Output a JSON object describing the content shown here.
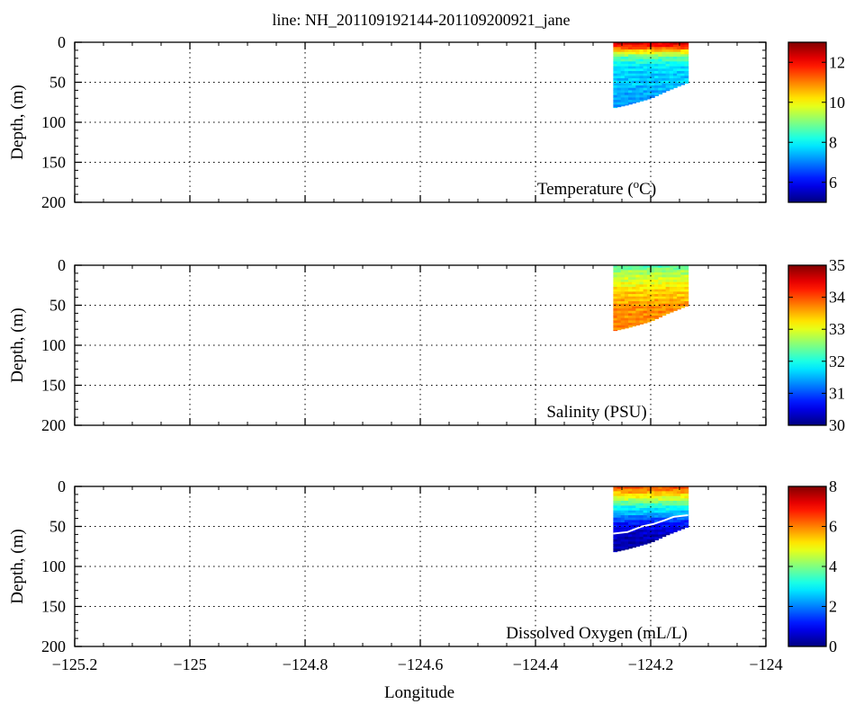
{
  "figure": {
    "title": "line: NH_201109192144-201109200921_jane",
    "xlabel": "Longitude"
  },
  "chart_data": [
    {
      "type": "heatmap",
      "id": "temperature",
      "label": "Temperature (",
      "label_sup": "o",
      "label_tail": "C)",
      "ylabel": "Depth, (m)",
      "xlim": [
        -125.2,
        -124.0
      ],
      "ylim": [
        200,
        0
      ],
      "y_inverted": true,
      "grid": true,
      "colorbar": {
        "min": 5,
        "max": 13,
        "ticks": [
          6,
          8,
          10,
          12
        ],
        "colormap": "jet"
      },
      "data_extent": {
        "lon_start": -124.265,
        "lon_end": -124.135,
        "top_depth": 0,
        "bottom_profile": [
          {
            "lon": -124.265,
            "depth": 82
          },
          {
            "lon": -124.24,
            "depth": 78
          },
          {
            "lon": -124.2,
            "depth": 70
          },
          {
            "lon": -124.17,
            "depth": 60
          },
          {
            "lon": -124.135,
            "depth": 50
          }
        ]
      },
      "vertical_profile": [
        {
          "depth": 0,
          "value": 12.5
        },
        {
          "depth": 5,
          "value": 12.0
        },
        {
          "depth": 10,
          "value": 10.8
        },
        {
          "depth": 18,
          "value": 9.0
        },
        {
          "depth": 30,
          "value": 8.0
        },
        {
          "depth": 60,
          "value": 7.6
        },
        {
          "depth": 85,
          "value": 7.4
        }
      ]
    },
    {
      "type": "heatmap",
      "id": "salinity",
      "label": "Salinity (PSU)",
      "ylabel": "Depth, (m)",
      "xlim": [
        -125.2,
        -124.0
      ],
      "ylim": [
        200,
        0
      ],
      "y_inverted": true,
      "grid": true,
      "colorbar": {
        "min": 30,
        "max": 35,
        "ticks": [
          30,
          31,
          32,
          33,
          34,
          35
        ],
        "colormap": "jet"
      },
      "data_extent": {
        "lon_start": -124.265,
        "lon_end": -124.135,
        "top_depth": 0,
        "bottom_profile": [
          {
            "lon": -124.265,
            "depth": 82
          },
          {
            "lon": -124.24,
            "depth": 78
          },
          {
            "lon": -124.2,
            "depth": 70
          },
          {
            "lon": -124.17,
            "depth": 60
          },
          {
            "lon": -124.135,
            "depth": 50
          }
        ]
      },
      "vertical_profile": [
        {
          "depth": 0,
          "value": 32.3
        },
        {
          "depth": 8,
          "value": 32.8
        },
        {
          "depth": 20,
          "value": 33.1
        },
        {
          "depth": 35,
          "value": 33.5
        },
        {
          "depth": 55,
          "value": 33.8
        },
        {
          "depth": 85,
          "value": 33.9
        }
      ]
    },
    {
      "type": "heatmap",
      "id": "oxygen",
      "label": "Dissolved Oxygen (mL/L)",
      "ylabel": "Depth, (m)",
      "xlim": [
        -125.2,
        -124.0
      ],
      "ylim": [
        200,
        0
      ],
      "y_inverted": true,
      "grid": true,
      "colorbar": {
        "min": 0,
        "max": 8,
        "ticks": [
          0,
          2,
          4,
          6,
          8
        ],
        "colormap": "jet"
      },
      "data_extent": {
        "lon_start": -124.265,
        "lon_end": -124.135,
        "top_depth": 0,
        "bottom_profile": [
          {
            "lon": -124.265,
            "depth": 82
          },
          {
            "lon": -124.24,
            "depth": 78
          },
          {
            "lon": -124.2,
            "depth": 70
          },
          {
            "lon": -124.17,
            "depth": 60
          },
          {
            "lon": -124.135,
            "depth": 50
          }
        ]
      },
      "vertical_profile": [
        {
          "depth": 0,
          "value": 6.6
        },
        {
          "depth": 6,
          "value": 6.0
        },
        {
          "depth": 14,
          "value": 5.0
        },
        {
          "depth": 25,
          "value": 3.4
        },
        {
          "depth": 38,
          "value": 2.2
        },
        {
          "depth": 48,
          "value": 1.2
        },
        {
          "depth": 60,
          "value": 0.7
        },
        {
          "depth": 85,
          "value": 0.5
        }
      ],
      "contour": {
        "color": "#ffffff",
        "points": [
          {
            "lon": -124.265,
            "depth": 59
          },
          {
            "lon": -124.24,
            "depth": 57
          },
          {
            "lon": -124.215,
            "depth": 50
          },
          {
            "lon": -124.195,
            "depth": 47
          },
          {
            "lon": -124.175,
            "depth": 42
          },
          {
            "lon": -124.16,
            "depth": 38
          },
          {
            "lon": -124.135,
            "depth": 36
          }
        ]
      }
    }
  ],
  "x_ticks": [
    -125.2,
    -125,
    -124.8,
    -124.6,
    -124.4,
    -124.2,
    -124
  ],
  "x_tick_labels": [
    "−125.2",
    "−125",
    "−124.8",
    "−124.6",
    "−124.4",
    "−124.2",
    "−124"
  ],
  "y_ticks": [
    0,
    50,
    100,
    150,
    200
  ]
}
